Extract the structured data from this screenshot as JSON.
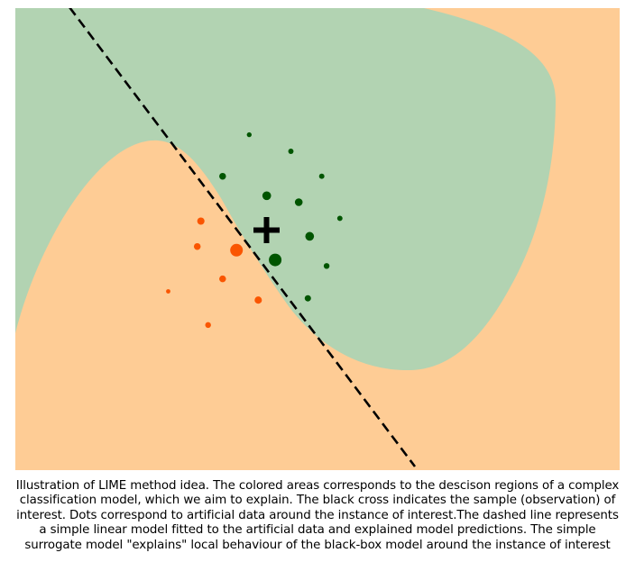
{
  "colors": {
    "region_positive": "#b2d3b2",
    "region_negative": "#fecc95",
    "dot_positive": "#005500",
    "dot_negative": "#fa5500",
    "surrogate_line": "#000000",
    "instance_marker": "#000000"
  },
  "chart_data": {
    "type": "scatter",
    "axes_visible": false,
    "regions": [
      {
        "class": "positive",
        "color": "#b2d3b2"
      },
      {
        "class": "negative",
        "color": "#fecc95"
      }
    ],
    "instance_of_interest": {
      "x": 0.415,
      "y": 0.518,
      "marker": "cross"
    },
    "surrogate_boundary": {
      "style": "dashed",
      "points": [
        {
          "x": 0.09,
          "y": 1.0
        },
        {
          "x": 0.66,
          "y": 0.0
        }
      ]
    },
    "series": [
      {
        "class": "positive",
        "color": "#005500",
        "points": [
          {
            "x": 0.387,
            "y": 0.726,
            "weight": 0.2
          },
          {
            "x": 0.456,
            "y": 0.69,
            "weight": 0.25
          },
          {
            "x": 0.507,
            "y": 0.636,
            "weight": 0.25
          },
          {
            "x": 0.343,
            "y": 0.636,
            "weight": 0.4
          },
          {
            "x": 0.416,
            "y": 0.594,
            "weight": 0.6
          },
          {
            "x": 0.469,
            "y": 0.58,
            "weight": 0.5
          },
          {
            "x": 0.537,
            "y": 0.545,
            "weight": 0.25
          },
          {
            "x": 0.487,
            "y": 0.506,
            "weight": 0.6
          },
          {
            "x": 0.43,
            "y": 0.455,
            "weight": 1.0
          },
          {
            "x": 0.515,
            "y": 0.442,
            "weight": 0.3
          },
          {
            "x": 0.484,
            "y": 0.372,
            "weight": 0.35
          }
        ]
      },
      {
        "class": "negative",
        "color": "#fa5500",
        "points": [
          {
            "x": 0.307,
            "y": 0.539,
            "weight": 0.45
          },
          {
            "x": 0.301,
            "y": 0.484,
            "weight": 0.4
          },
          {
            "x": 0.366,
            "y": 0.476,
            "weight": 1.0
          },
          {
            "x": 0.343,
            "y": 0.414,
            "weight": 0.4
          },
          {
            "x": 0.253,
            "y": 0.387,
            "weight": 0.15
          },
          {
            "x": 0.402,
            "y": 0.368,
            "weight": 0.45
          },
          {
            "x": 0.319,
            "y": 0.314,
            "weight": 0.3
          }
        ]
      }
    ]
  },
  "caption": {
    "lines": [
      "Illustration of LIME method idea. The colored areas corresponds to the descison regions of a complex",
      "classification model, which we aim to explain. The black cross indicates the sample (observation) of",
      "interest. Dots correspond to artificial data around the instance of interest.The dashed line represents",
      "a simple linear model fitted to the artificial data and explained model predictions. The simple",
      "surrogate model \"explains\" local behaviour of the black-box model around the instance of interest"
    ]
  }
}
